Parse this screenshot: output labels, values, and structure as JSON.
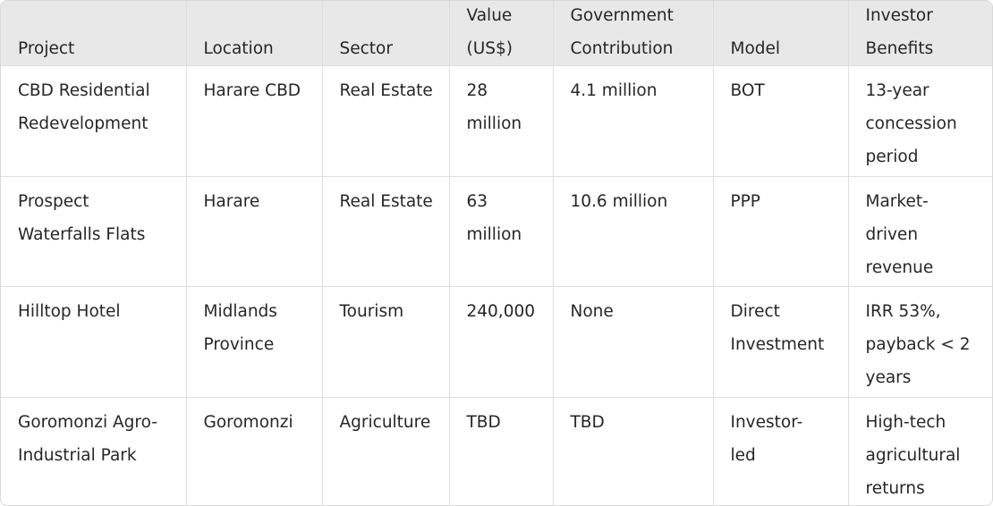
{
  "table": {
    "headers": [
      "Project",
      "Location",
      "Sector",
      "Value (US$)",
      "Government Contribution",
      "Model",
      "Investor Benefits"
    ],
    "rows": [
      [
        "CBD Residential Redevelopment",
        "Harare CBD",
        "Real Estate",
        "28 million",
        "4.1 million",
        "BOT",
        "13-year concession period"
      ],
      [
        "Prospect Waterfalls Flats",
        "Harare",
        "Real Estate",
        "63 million",
        "10.6 million",
        "PPP",
        "Market-driven revenue"
      ],
      [
        "Hilltop Hotel",
        "Midlands Province",
        "Tourism",
        "240,000",
        "None",
        "Direct Investment",
        "IRR 53%, payback < 2 years"
      ],
      [
        "Goromonzi Agro-Industrial Park",
        "Goromonzi",
        "Agriculture",
        "TBD",
        "TBD",
        "Investor-led",
        "High-tech agricultural returns"
      ]
    ]
  }
}
